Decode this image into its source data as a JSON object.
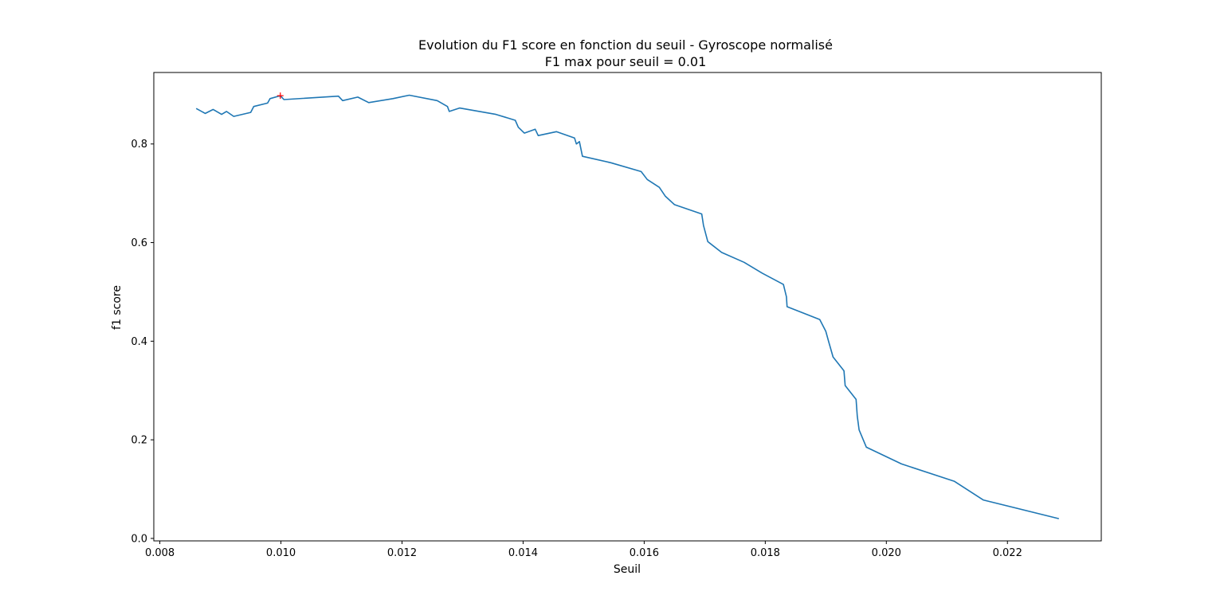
{
  "chart_data": {
    "type": "line",
    "title_line1": "Evolution du F1 score en fonction du seuil - Gyroscope normalisé",
    "title_line2": "F1 max pour seuil = 0.01",
    "xlabel": "Seuil",
    "ylabel": "f1 score",
    "xlim": [
      0.0079,
      0.02355
    ],
    "ylim": [
      -0.005,
      0.945
    ],
    "xticks": [
      0.008,
      0.01,
      0.012,
      0.014,
      0.016,
      0.018,
      0.02,
      0.022
    ],
    "xtick_labels": [
      "0.008",
      "0.010",
      "0.012",
      "0.014",
      "0.016",
      "0.018",
      "0.020",
      "0.022"
    ],
    "yticks": [
      0.0,
      0.2,
      0.4,
      0.6,
      0.8
    ],
    "ytick_labels": [
      "0.0",
      "0.2",
      "0.4",
      "0.6",
      "0.8"
    ],
    "series": [
      {
        "name": "f1",
        "color": "#1f77b4",
        "x": [
          0.0086,
          0.00875,
          0.00888,
          0.00902,
          0.0091,
          0.00922,
          0.0095,
          0.00955,
          0.00978,
          0.00982,
          0.00999,
          0.01005,
          0.01095,
          0.01102,
          0.01127,
          0.01145,
          0.01185,
          0.01212,
          0.01258,
          0.01275,
          0.01278,
          0.01295,
          0.01355,
          0.01387,
          0.01392,
          0.01402,
          0.0142,
          0.01425,
          0.01455,
          0.01485,
          0.01488,
          0.01493,
          0.01498,
          0.01545,
          0.01595,
          0.01605,
          0.01625,
          0.01635,
          0.0165,
          0.01695,
          0.01698,
          0.01705,
          0.01728,
          0.01765,
          0.01795,
          0.0183,
          0.01835,
          0.01836,
          0.0189,
          0.019,
          0.01905,
          0.01912,
          0.0193,
          0.01932,
          0.0195,
          0.01952,
          0.01955,
          0.01967,
          0.02025,
          0.02112,
          0.0216,
          0.02285
        ],
        "y": [
          0.872,
          0.862,
          0.87,
          0.86,
          0.866,
          0.856,
          0.864,
          0.876,
          0.883,
          0.892,
          0.898,
          0.89,
          0.897,
          0.888,
          0.895,
          0.884,
          0.892,
          0.899,
          0.888,
          0.876,
          0.866,
          0.873,
          0.86,
          0.848,
          0.834,
          0.822,
          0.83,
          0.817,
          0.825,
          0.812,
          0.8,
          0.805,
          0.775,
          0.762,
          0.744,
          0.728,
          0.712,
          0.694,
          0.677,
          0.658,
          0.635,
          0.602,
          0.58,
          0.56,
          0.538,
          0.515,
          0.49,
          0.47,
          0.444,
          0.42,
          0.398,
          0.368,
          0.34,
          0.31,
          0.282,
          0.248,
          0.22,
          0.185,
          0.151,
          0.116,
          0.078,
          0.04
        ]
      }
    ],
    "marker": {
      "x": 0.00999,
      "y": 0.898,
      "symbol": "+",
      "color": "#ff0000",
      "label": "F1 max"
    }
  }
}
